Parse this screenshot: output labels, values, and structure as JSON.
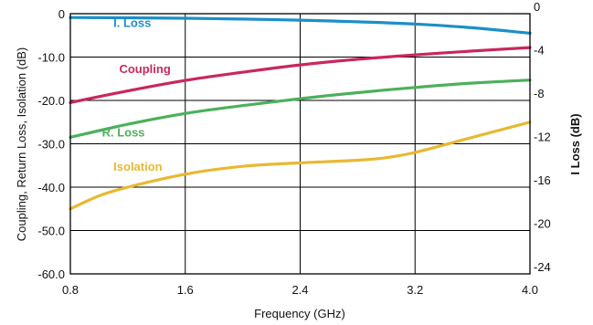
{
  "chart_data": {
    "type": "line",
    "xlabel": "Frequency (GHz)",
    "ylabel": "Coupling, Return Loss, Isolation (dB)",
    "y2label": "I Loss (dB)",
    "xlim": [
      0.8,
      4.0
    ],
    "ylim": [
      -60,
      0
    ],
    "y2lim": [
      -24,
      0
    ],
    "x_ticks": [
      "0.8",
      "1.6",
      "2.4",
      "3.2",
      "4.0"
    ],
    "y_ticks": [
      "0",
      "-10.0",
      "-20.0",
      "-30.0",
      "-40.0",
      "-50.0",
      "-60.0"
    ],
    "y2_ticks": [
      "0",
      "-4",
      "-8",
      "-12",
      "-16",
      "-20",
      "-24"
    ],
    "grid": true,
    "series": [
      {
        "name": "I. Loss",
        "axis": "right",
        "color": "#1b8fc8",
        "x": [
          0.8,
          1.2,
          1.6,
          2.0,
          2.4,
          2.8,
          3.2,
          3.6,
          4.0
        ],
        "y": [
          -0.35,
          -0.38,
          -0.42,
          -0.5,
          -0.6,
          -0.75,
          -0.95,
          -1.3,
          -1.8
        ]
      },
      {
        "name": "Coupling",
        "axis": "left",
        "color": "#c8285a",
        "x": [
          0.8,
          1.2,
          1.6,
          2.0,
          2.4,
          2.8,
          3.2,
          3.6,
          4.0
        ],
        "y": [
          -20.5,
          -17.8,
          -15.4,
          -13.5,
          -11.8,
          -10.5,
          -9.5,
          -8.6,
          -7.8
        ]
      },
      {
        "name": "R. Loss",
        "axis": "left",
        "color": "#4cb05c",
        "x": [
          0.8,
          1.2,
          1.6,
          2.0,
          2.4,
          2.8,
          3.2,
          3.6,
          4.0
        ],
        "y": [
          -28.5,
          -25.5,
          -23.0,
          -21.2,
          -19.6,
          -18.2,
          -17.0,
          -16.0,
          -15.3
        ]
      },
      {
        "name": "Isolation",
        "axis": "left",
        "color": "#e8b830",
        "x": [
          0.8,
          1.0,
          1.2,
          1.6,
          2.0,
          2.4,
          2.8,
          3.0,
          3.2,
          3.6,
          4.0
        ],
        "y": [
          -45.0,
          -42.0,
          -40.0,
          -37.0,
          -35.2,
          -34.4,
          -33.8,
          -33.2,
          -32.0,
          -28.5,
          -25.0
        ]
      }
    ]
  }
}
